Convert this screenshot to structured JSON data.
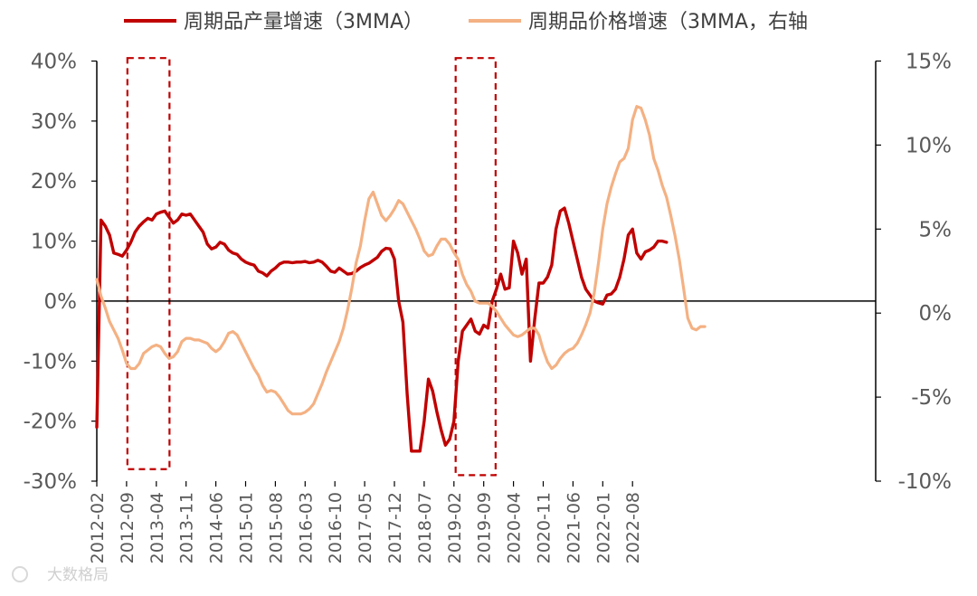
{
  "chart_data": {
    "type": "line",
    "legend": [
      {
        "name": "周期品产量增速（3MMA）",
        "color": "#c00000"
      },
      {
        "name": "周期品价格增速（3MMA，右轴",
        "color": "#f4b183"
      }
    ],
    "left_axis": {
      "min": -30,
      "max": 40,
      "step": 10,
      "tick_labels": [
        "40%",
        "30%",
        "20%",
        "10%",
        "0%",
        "-10%",
        "-20%",
        "-30%"
      ]
    },
    "right_axis": {
      "min": -10,
      "max": 15,
      "step": 5,
      "tick_labels": [
        "15%",
        "10%",
        "5%",
        "0%",
        "-5%",
        "-10%"
      ]
    },
    "x_tick_labels": [
      "2012-02",
      "2012-09",
      "2013-04",
      "2013-11",
      "2014-06",
      "2015-01",
      "2015-08",
      "2016-03",
      "2016-10",
      "2017-05",
      "2017-12",
      "2018-07",
      "2019-02",
      "2019-09",
      "2020-04",
      "2020-11",
      "2021-06",
      "2022-01",
      "2022-08"
    ],
    "x_start": "2012-02",
    "tick_step_months": 7,
    "highlight_boxes": [
      {
        "from_month": 7.2,
        "to_month": 17.1,
        "ymin": -28,
        "ymax": 40.5
      },
      {
        "from_month": 84.4,
        "to_month": 93.8,
        "ymin": -29,
        "ymax": 40.5
      }
    ],
    "series": [
      {
        "name": "周期品产量增速（3MMA）",
        "axis": "left",
        "color": "#c00000",
        "start_month_index": 0,
        "values": [
          -21,
          13.5,
          12.5,
          11,
          8,
          7.8,
          7.5,
          8.5,
          9.8,
          11.5,
          12.5,
          13.2,
          13.8,
          13.5,
          14.5,
          14.8,
          15,
          14,
          13,
          13.5,
          14.5,
          14.3,
          14.5,
          13.5,
          12.5,
          11.5,
          9.5,
          8.7,
          9,
          9.8,
          9.5,
          8.5,
          8,
          7.8,
          7,
          6.5,
          6.2,
          6,
          5,
          4.7,
          4.2,
          5,
          5.5,
          6.2,
          6.5,
          6.5,
          6.4,
          6.5,
          6.5,
          6.6,
          6.4,
          6.5,
          6.8,
          6.5,
          5.8,
          5,
          4.8,
          5.5,
          5,
          4.5,
          4.6,
          5,
          5.6,
          6,
          6.3,
          6.8,
          7.3,
          8.3,
          8.8,
          8.7,
          7,
          0,
          -3.5,
          -15.5,
          -25,
          -25,
          -25,
          -20,
          -13,
          -15,
          -18.5,
          -21.5,
          -24,
          -23,
          -20,
          -10,
          -5,
          -4,
          -3,
          -5,
          -5.5,
          -4,
          -4.5,
          0,
          2,
          4.5,
          2,
          2.2,
          10,
          8,
          4.5,
          7,
          -10,
          -3,
          3,
          3,
          4,
          6,
          12,
          15,
          15.5,
          13,
          10,
          7,
          4,
          2,
          1,
          0,
          -0.3,
          -0.5,
          1,
          1.2,
          2,
          4,
          7,
          11,
          12,
          8,
          7,
          8.2,
          8.5,
          9,
          10,
          10,
          9.8
        ]
      },
      {
        "name": "周期品价格增速（3MMA，右轴",
        "axis": "right",
        "color": "#f4b183",
        "start_month_index": 0,
        "values": [
          2,
          1,
          0.3,
          -0.5,
          -1,
          -1.5,
          -2.2,
          -3,
          -3.3,
          -3.3,
          -3,
          -2.4,
          -2.2,
          -2.0,
          -1.9,
          -2.0,
          -2.4,
          -2.7,
          -2.6,
          -2.3,
          -1.7,
          -1.5,
          -1.5,
          -1.6,
          -1.6,
          -1.7,
          -1.8,
          -2.1,
          -2.3,
          -2.1,
          -1.7,
          -1.2,
          -1.1,
          -1.3,
          -1.8,
          -2.3,
          -2.8,
          -3.3,
          -3.7,
          -4.3,
          -4.7,
          -4.6,
          -4.7,
          -5.0,
          -5.4,
          -5.8,
          -6.0,
          -6.0,
          -6.0,
          -5.9,
          -5.7,
          -5.4,
          -4.8,
          -4.2,
          -3.5,
          -2.9,
          -2.3,
          -1.7,
          -0.9,
          0.2,
          1.5,
          3,
          4,
          5.5,
          6.8,
          7.2,
          6.5,
          5.8,
          5.5,
          5.8,
          6.2,
          6.7,
          6.5,
          6,
          5.5,
          5,
          4.4,
          3.7,
          3.4,
          3.5,
          4,
          4.4,
          4.4,
          4.1,
          3.6,
          3.2,
          2.3,
          1.7,
          1.3,
          0.7,
          0.6,
          0.6,
          0.6,
          0.4,
          0.1,
          -0.3,
          -0.7,
          -1,
          -1.3,
          -1.4,
          -1.3,
          -1.1,
          -0.9,
          -0.9,
          -1.3,
          -2.2,
          -2.9,
          -3.3,
          -3.1,
          -2.7,
          -2.4,
          -2.2,
          -2.1,
          -1.8,
          -1.3,
          -0.7,
          0,
          1.2,
          3,
          5,
          6.5,
          7.5,
          8.3,
          9,
          9.2,
          9.8,
          11.5,
          12.3,
          12.2,
          11.5,
          10.6,
          9.2,
          8.5,
          7.6,
          6.9,
          5.8,
          4.6,
          3.2,
          1.5,
          -0.3,
          -0.9,
          -1,
          -0.8,
          -0.8
        ]
      }
    ],
    "watermark_text": "大数格局"
  }
}
